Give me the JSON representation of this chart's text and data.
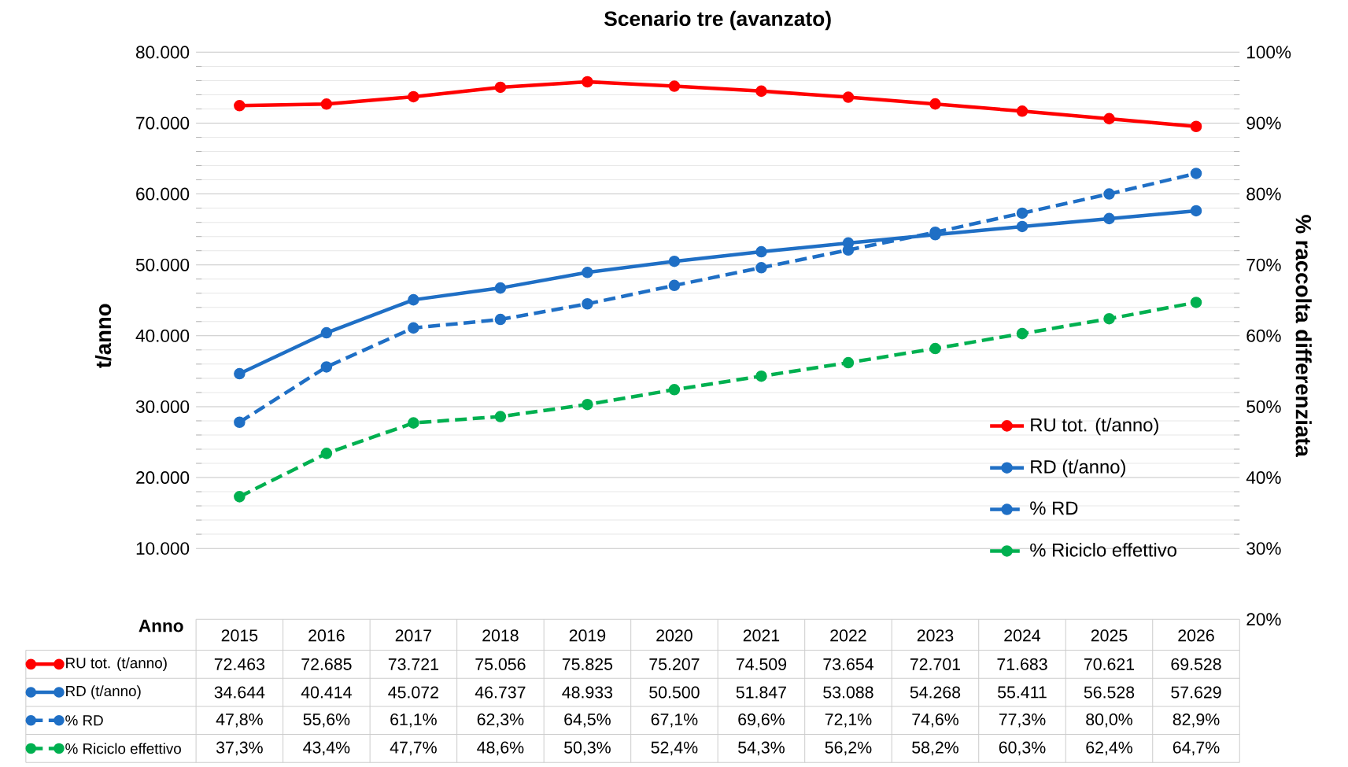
{
  "chart_data": {
    "type": "line",
    "title": "Scenario tre (avanzato)",
    "xlabel": "Anno",
    "ylabel": "t/anno",
    "y2label": "% raccolta differenziata",
    "categories": [
      "2015",
      "2016",
      "2017",
      "2018",
      "2019",
      "2020",
      "2021",
      "2022",
      "2023",
      "2024",
      "2025",
      "2026"
    ],
    "series": [
      {
        "name": "RU tot. (t/anno)",
        "color": "#ff0000",
        "line_style": "solid",
        "values": [
          72463,
          72685,
          73721,
          75056,
          75825,
          75207,
          74509,
          73654,
          72701,
          71683,
          70621,
          69528
        ],
        "value_labels": [
          "72.463",
          "72.685",
          "73.721",
          "75.056",
          "75.825",
          "75.207",
          "74.509",
          "73.654",
          "72.701",
          "71.683",
          "70.621",
          "69.528"
        ]
      },
      {
        "name": "RD (t/anno)",
        "color": "#1f6fc5",
        "line_style": "solid",
        "values": [
          34644,
          40414,
          45072,
          46737,
          48933,
          50500,
          51847,
          53088,
          54268,
          55411,
          56528,
          57629
        ],
        "value_labels": [
          "34.644",
          "40.414",
          "45.072",
          "46.737",
          "48.933",
          "50.500",
          "51.847",
          "53.088",
          "54.268",
          "55.411",
          "56.528",
          "57.629"
        ]
      },
      {
        "name": "% RD",
        "color": "#1f6fc5",
        "line_style": "dashed",
        "axis": "y2",
        "values": [
          47.8,
          55.6,
          61.1,
          62.3,
          64.5,
          67.1,
          69.6,
          72.1,
          74.6,
          77.3,
          80.0,
          82.9
        ],
        "value_labels": [
          "47,8%",
          "55,6%",
          "61,1%",
          "62,3%",
          "64,5%",
          "67,1%",
          "69,6%",
          "72,1%",
          "74,6%",
          "77,3%",
          "80,0%",
          "82,9%"
        ]
      },
      {
        "name": "% Riciclo effettivo",
        "color": "#00b050",
        "line_style": "dashed",
        "axis": "y2",
        "values": [
          37.3,
          43.4,
          47.7,
          48.6,
          50.3,
          52.4,
          54.3,
          56.2,
          58.2,
          60.3,
          62.4,
          64.7
        ],
        "value_labels": [
          "37,3%",
          "43,4%",
          "47,7%",
          "48,6%",
          "50,3%",
          "52,4%",
          "54,3%",
          "56,2%",
          "58,2%",
          "60,3%",
          "62,4%",
          "64,7%"
        ]
      }
    ],
    "ylim": [
      0,
      80000
    ],
    "yticks": [
      {
        "value": 10000,
        "label": "10.000"
      },
      {
        "value": 20000,
        "label": "20.000"
      },
      {
        "value": 30000,
        "label": "30.000"
      },
      {
        "value": 40000,
        "label": "40.000"
      },
      {
        "value": 50000,
        "label": "50.000"
      },
      {
        "value": 60000,
        "label": "60.000"
      },
      {
        "value": 70000,
        "label": "70.000"
      },
      {
        "value": 80000,
        "label": "80.000"
      }
    ],
    "y2lim": [
      20,
      100
    ],
    "y2ticks": [
      {
        "value": 20,
        "label": "20%"
      },
      {
        "value": 30,
        "label": "30%"
      },
      {
        "value": 40,
        "label": "40%"
      },
      {
        "value": 50,
        "label": "50%"
      },
      {
        "value": 60,
        "label": "60%"
      },
      {
        "value": 70,
        "label": "70%"
      },
      {
        "value": 80,
        "label": "80%"
      },
      {
        "value": 90,
        "label": "90%"
      },
      {
        "value": 100,
        "label": "100%"
      }
    ],
    "grid": "y",
    "legend": "right",
    "marker": "circle"
  }
}
